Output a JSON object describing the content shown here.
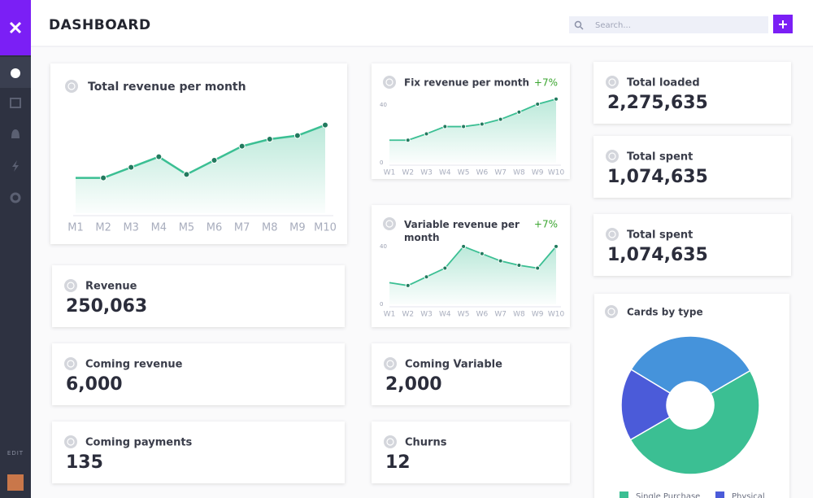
{
  "header": {
    "title": "DASHBOARD",
    "search_placeholder": "Search..."
  },
  "sidebar": {
    "edit_label": "EDIT"
  },
  "cards": [
    {
      "title": "Revenue",
      "value": "250,063"
    },
    {
      "title": "Coming revenue",
      "value": "6,000"
    },
    {
      "title": "Coming payments",
      "value": "135"
    },
    {
      "title": "Coming Variable",
      "value": "2,000"
    },
    {
      "title": "Churns",
      "value": "12"
    },
    {
      "title": "Total loaded",
      "value": "2,275,635"
    },
    {
      "title": "Total spent",
      "value": "1,074,635"
    },
    {
      "title": "Total spent",
      "value": "1,074,635"
    }
  ],
  "chart_data": [
    {
      "type": "line",
      "title": "Total revenue per month",
      "categories": [
        "M1",
        "M2",
        "M3",
        "M4",
        "M5",
        "M6",
        "M7",
        "M8",
        "M9",
        "M10"
      ],
      "values": [
        20,
        20,
        26,
        32,
        22,
        30,
        38,
        42,
        44,
        50
      ],
      "ylim": [
        0,
        60
      ],
      "color": "#3bbf93"
    },
    {
      "type": "line",
      "title": "Fix revenue per month",
      "badge": "+7%",
      "categories": [
        "W1",
        "W2",
        "W3",
        "W4",
        "W5",
        "W6",
        "W7",
        "W8",
        "W9",
        "W10"
      ],
      "values": [
        15.6,
        15.6,
        20,
        25,
        25,
        26.7,
        30,
        35,
        40.5,
        44
      ],
      "ylim": [
        0,
        45
      ],
      "yticks": [
        0,
        40
      ],
      "color": "#3bbf93"
    },
    {
      "type": "line",
      "title": "Variable revenue per month",
      "badge": "+7%",
      "categories": [
        "W1",
        "W2",
        "W3",
        "W4",
        "W5",
        "W6",
        "W7",
        "W8",
        "W9",
        "W10"
      ],
      "values": [
        15,
        13,
        19,
        25,
        40,
        35,
        30,
        27,
        25,
        40
      ],
      "ylim": [
        0,
        45
      ],
      "yticks": [
        0,
        40
      ],
      "color": "#3bbf93"
    },
    {
      "type": "donut",
      "title": "Cards by type",
      "categories": [
        "Single Purchase",
        "Physical",
        null
      ],
      "values": [
        50,
        17,
        33
      ],
      "colors": [
        "#3bbf93",
        "#4b5bd9",
        "#4593db"
      ]
    }
  ]
}
